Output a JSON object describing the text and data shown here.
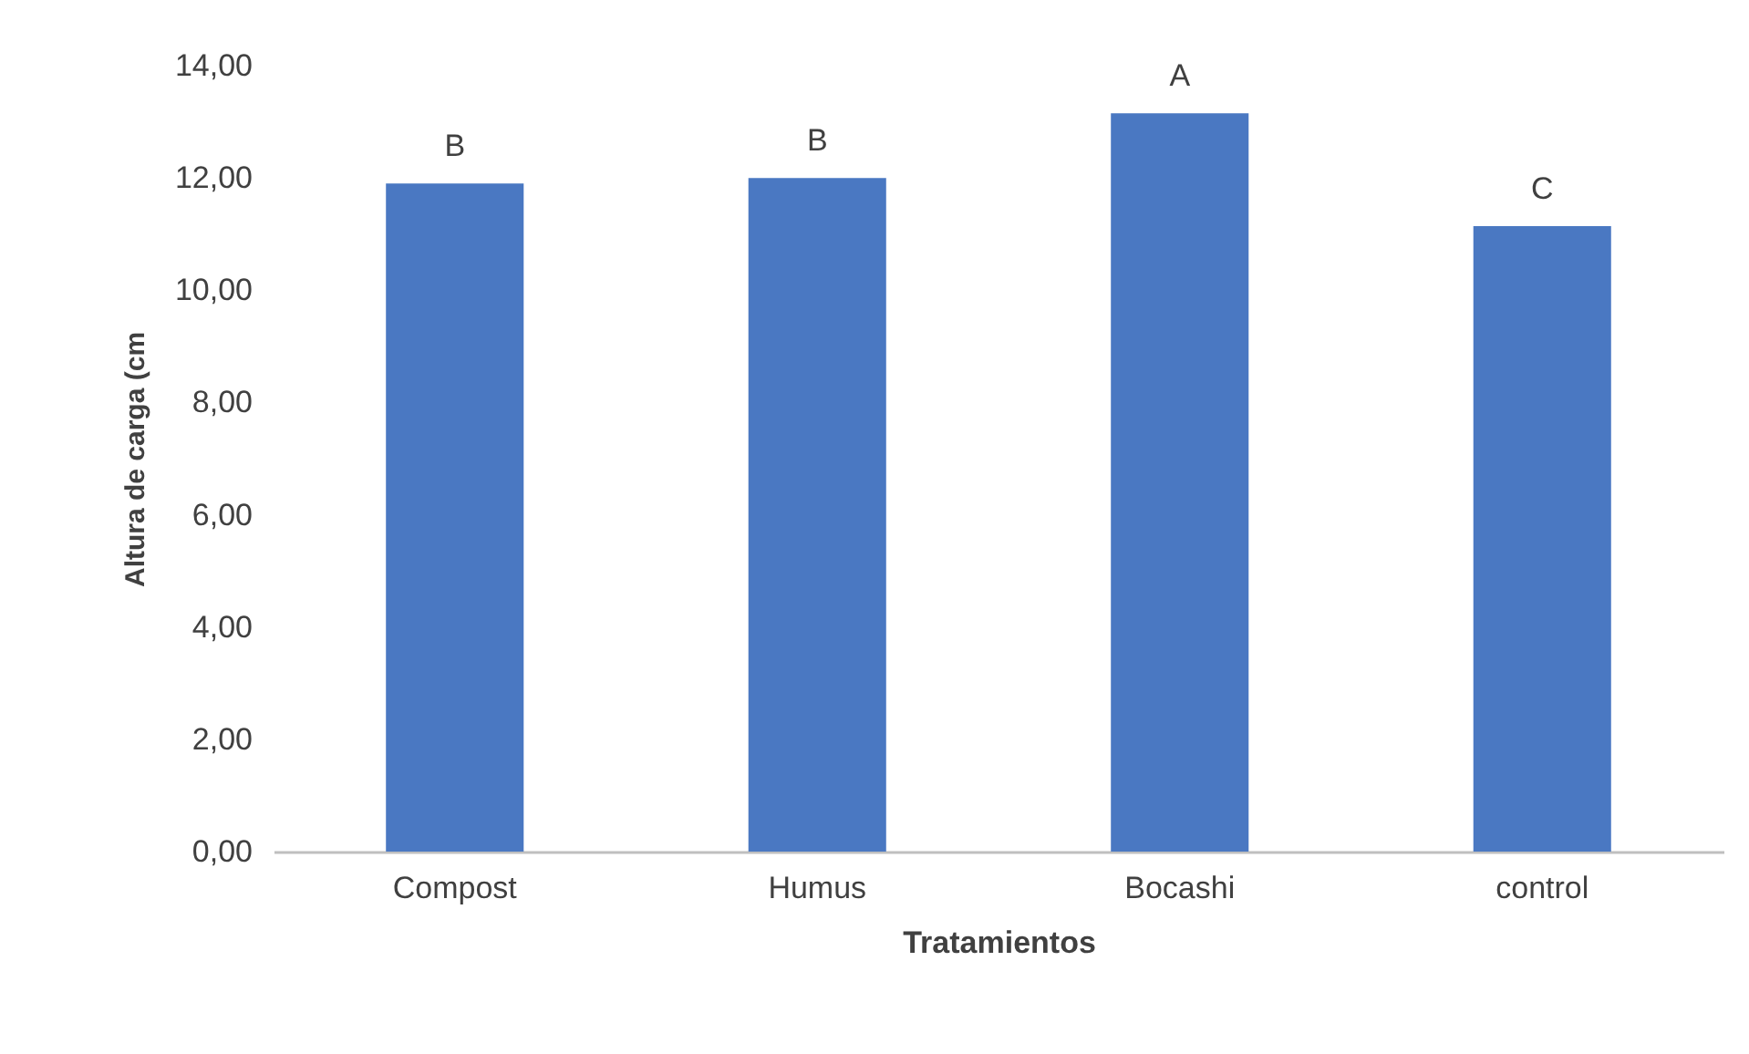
{
  "chart_data": {
    "type": "bar",
    "xlabel": "Tratamientos",
    "ylabel": "Altura de carga (cm",
    "categories": [
      "Compost",
      "Humus",
      "Bocashi",
      "control"
    ],
    "values": [
      11.9,
      12.0,
      13.15,
      11.14
    ],
    "color": "#4a78c2",
    "value_labels": [
      "B",
      "B",
      "A",
      "C"
    ],
    "ylim": [
      0,
      14
    ],
    "yticks": [
      {
        "value": 0,
        "label": "0,00"
      },
      {
        "value": 2,
        "label": "2,00"
      },
      {
        "value": 4,
        "label": "4,00"
      },
      {
        "value": 6,
        "label": "6,00"
      },
      {
        "value": 8,
        "label": "8,00"
      },
      {
        "value": 10,
        "label": "10,00"
      },
      {
        "value": 12,
        "label": "12,00"
      },
      {
        "value": 14,
        "label": "14,00"
      }
    ],
    "grid": false
  }
}
